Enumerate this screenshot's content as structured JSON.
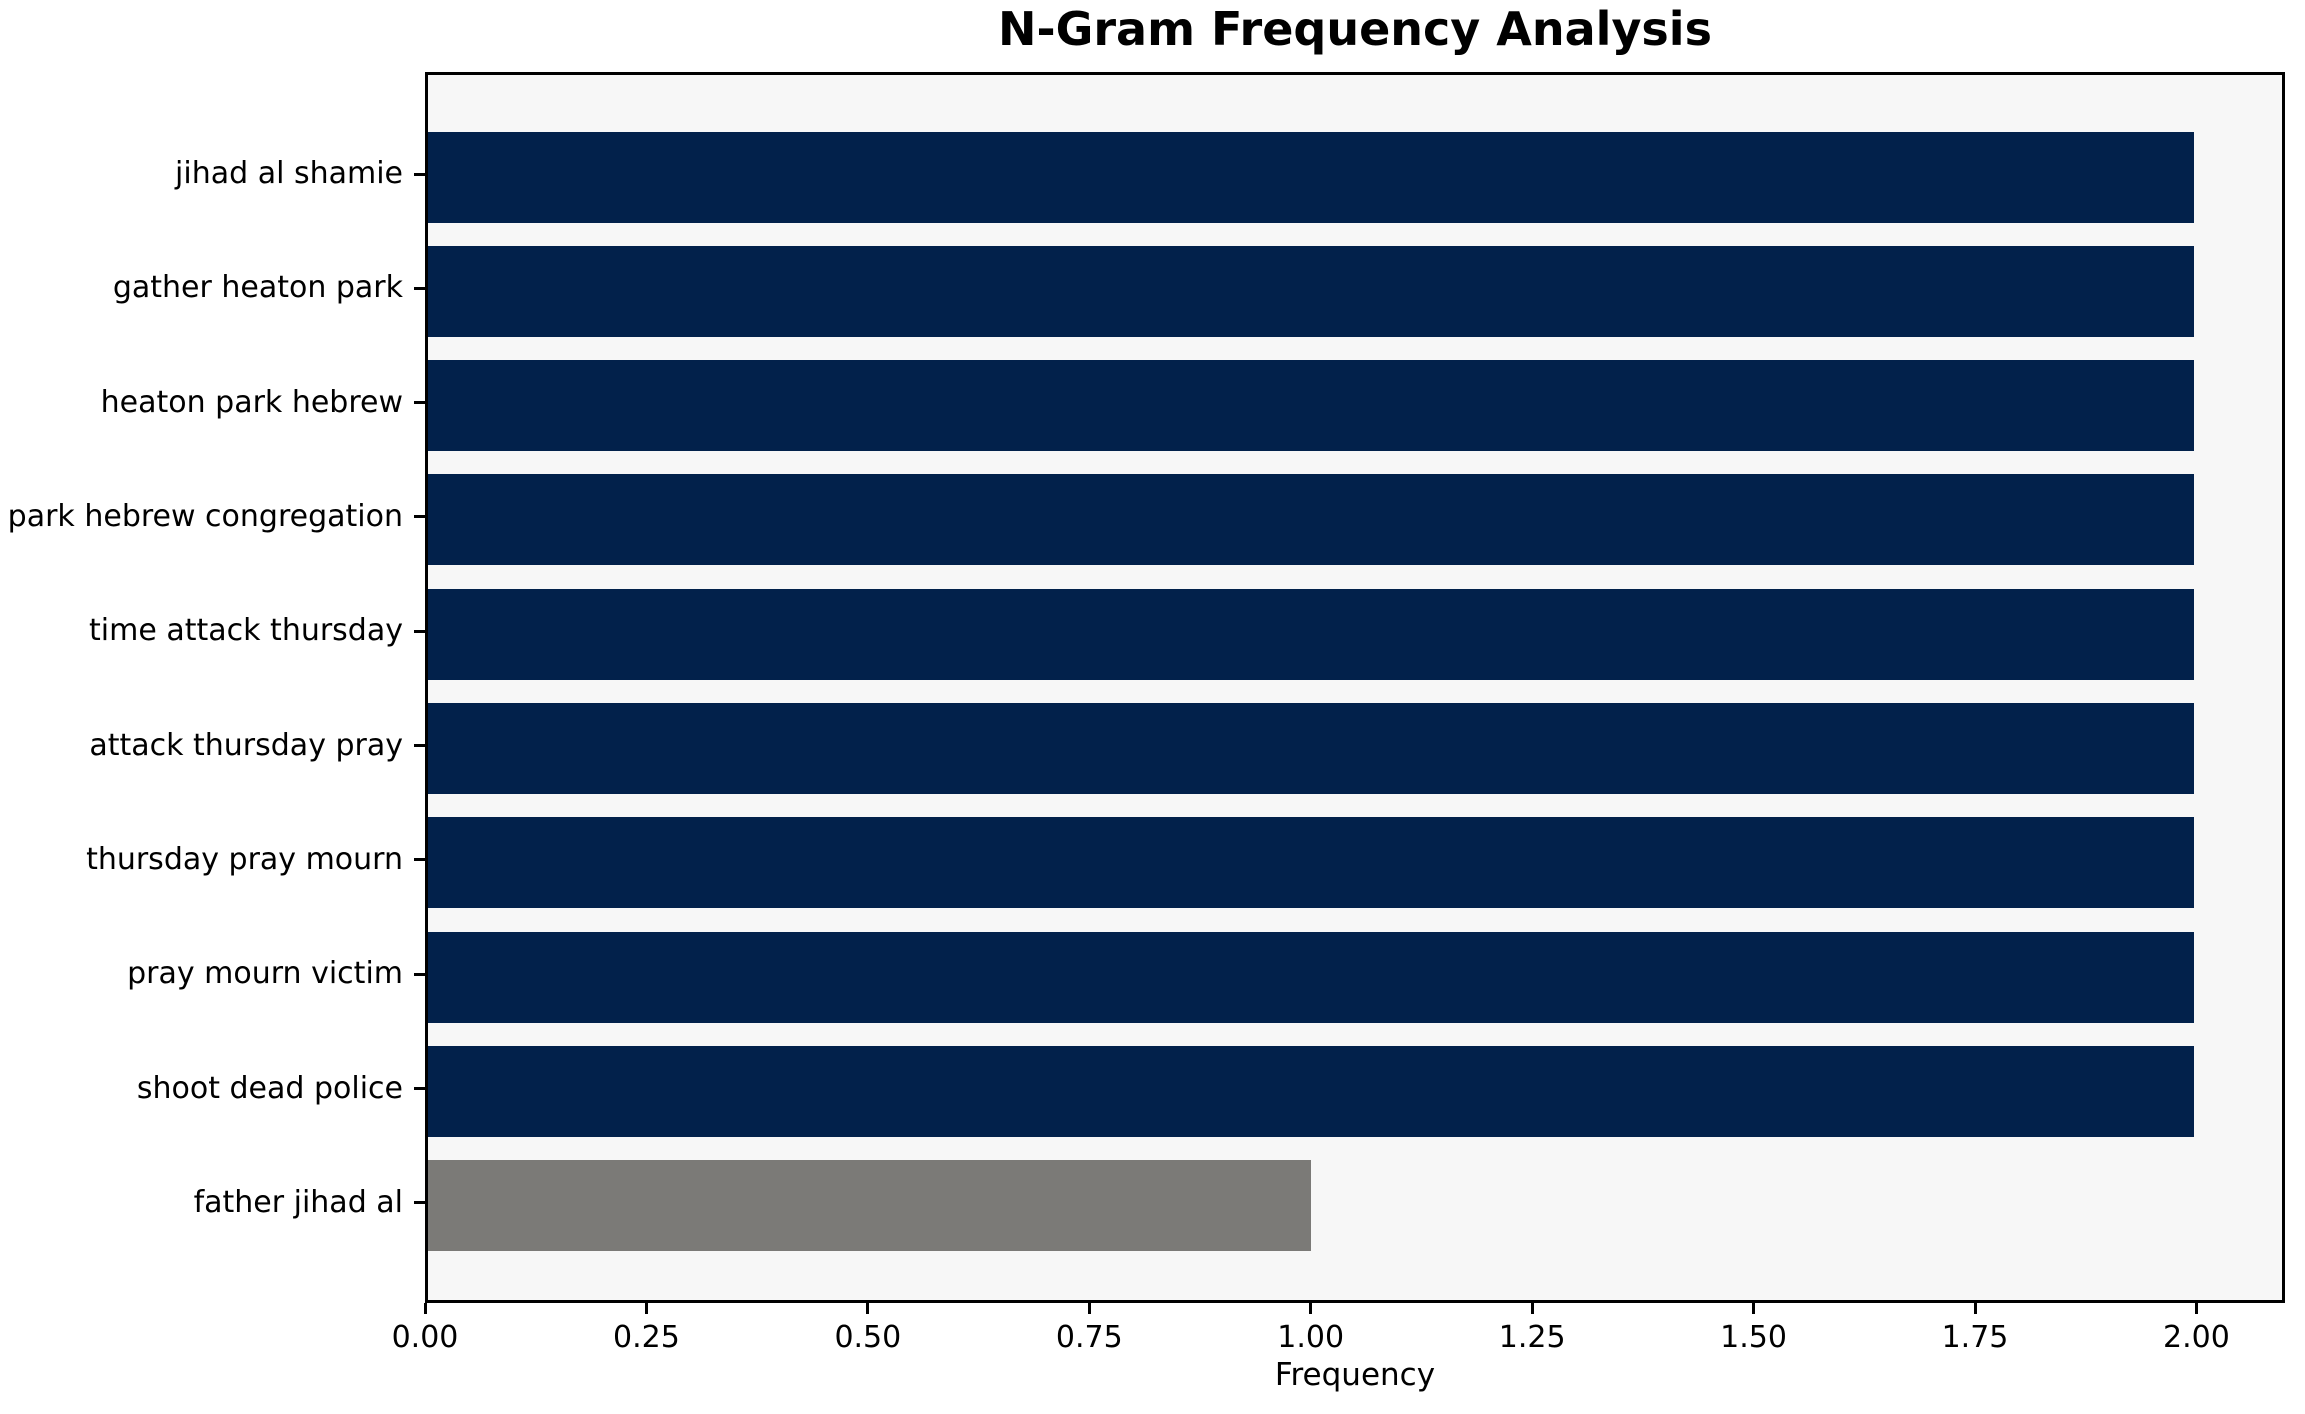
{
  "chart_data": {
    "type": "bar",
    "orientation": "horizontal",
    "title": "N-Gram Frequency Analysis",
    "xlabel": "Frequency",
    "ylabel": "",
    "categories": [
      "jihad al shamie",
      "gather heaton park",
      "heaton park hebrew",
      "park hebrew congregation",
      "time attack thursday",
      "attack thursday pray",
      "thursday pray mourn",
      "pray mourn victim",
      "shoot dead police",
      "father jihad al"
    ],
    "values": [
      2,
      2,
      2,
      2,
      2,
      2,
      2,
      2,
      2,
      1
    ],
    "bar_colors": [
      "#02214b",
      "#02214b",
      "#02214b",
      "#02214b",
      "#02214b",
      "#02214b",
      "#02214b",
      "#02214b",
      "#02214b",
      "#7b7a77"
    ],
    "xlim": [
      0,
      2.1
    ],
    "x_tick_values": [
      0,
      0.25,
      0.5,
      0.75,
      1.0,
      1.25,
      1.5,
      1.75,
      2.0
    ],
    "x_ticks": [
      "0.00",
      "0.25",
      "0.50",
      "0.75",
      "1.00",
      "1.25",
      "1.50",
      "1.75",
      "2.00"
    ],
    "grid": false,
    "legend": null,
    "plot_background": "#f7f7f7",
    "figure_background": "#ffffff",
    "colors": {
      "bar_primary": "#02214b",
      "bar_secondary": "#7b7a77",
      "axis": "#000000",
      "text": "#000000"
    }
  }
}
